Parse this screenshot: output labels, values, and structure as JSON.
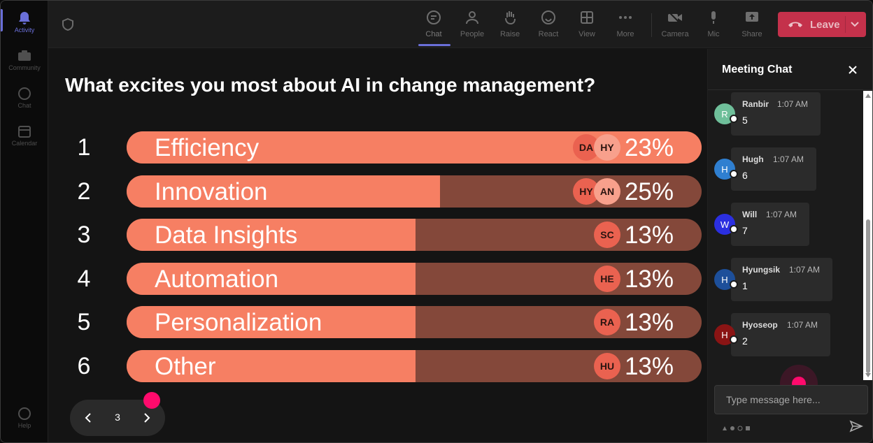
{
  "rail": {
    "items": [
      {
        "label": "Activity",
        "icon": "bell-icon",
        "active": true
      },
      {
        "label": "Community",
        "icon": "community-icon",
        "active": false
      },
      {
        "label": "Chat",
        "icon": "chat-icon",
        "active": false
      },
      {
        "label": "Calendar",
        "icon": "calendar-icon",
        "active": false
      }
    ],
    "help_label": "Help"
  },
  "toolbar": {
    "chat_label": "Chat",
    "people_label": "People",
    "raise_label": "Raise",
    "react_label": "React",
    "view_label": "View",
    "more_label": "More",
    "camera_label": "Camera",
    "mic_label": "Mic",
    "share_label": "Share",
    "leave_label": "Leave",
    "accent_color": "#6a6fd8",
    "leave_color": "#c4314b"
  },
  "poll": {
    "question": "What excites you most about AI in change management?",
    "options": [
      {
        "rank": "1",
        "label": "Efficiency",
        "percent": "23%",
        "fill": 1.0,
        "avatars": [
          "DA",
          "HY"
        ]
      },
      {
        "rank": "2",
        "label": "Innovation",
        "percent": "25%",
        "fill": 0.545,
        "avatars": [
          "HY",
          "AN"
        ]
      },
      {
        "rank": "3",
        "label": "Data Insights",
        "percent": "13%",
        "fill": 0.502,
        "avatars": [
          "SC"
        ]
      },
      {
        "rank": "4",
        "label": "Automation",
        "percent": "13%",
        "fill": 0.502,
        "avatars": [
          "HE"
        ]
      },
      {
        "rank": "5",
        "label": "Personalization",
        "percent": "13%",
        "fill": 0.502,
        "avatars": [
          "RA"
        ]
      },
      {
        "rank": "6",
        "label": "Other",
        "percent": "13%",
        "fill": 0.502,
        "avatars": [
          "HU"
        ]
      }
    ],
    "bar_fill_color": "#f67f63",
    "bar_track_color": "#84483a"
  },
  "pager": {
    "page": "3"
  },
  "chat": {
    "title": "Meeting Chat",
    "messages": [
      {
        "initial": "R",
        "name": "Ranbir",
        "time": "1:07 AM",
        "text": "5",
        "color": "#6fbf9a"
      },
      {
        "initial": "H",
        "name": "Hugh",
        "time": "1:07 AM",
        "text": "6",
        "color": "#2f7fd0"
      },
      {
        "initial": "W",
        "name": "Will",
        "time": "1:07 AM",
        "text": "7",
        "color": "#2b2fe0"
      },
      {
        "initial": "H",
        "name": "Hyungsik",
        "time": "1:07 AM",
        "text": "1",
        "color": "#1d4f9a"
      },
      {
        "initial": "H",
        "name": "Hyoseop",
        "time": "1:07 AM",
        "text": "2",
        "color": "#8a1414"
      }
    ],
    "input_placeholder": "Type message here..."
  }
}
